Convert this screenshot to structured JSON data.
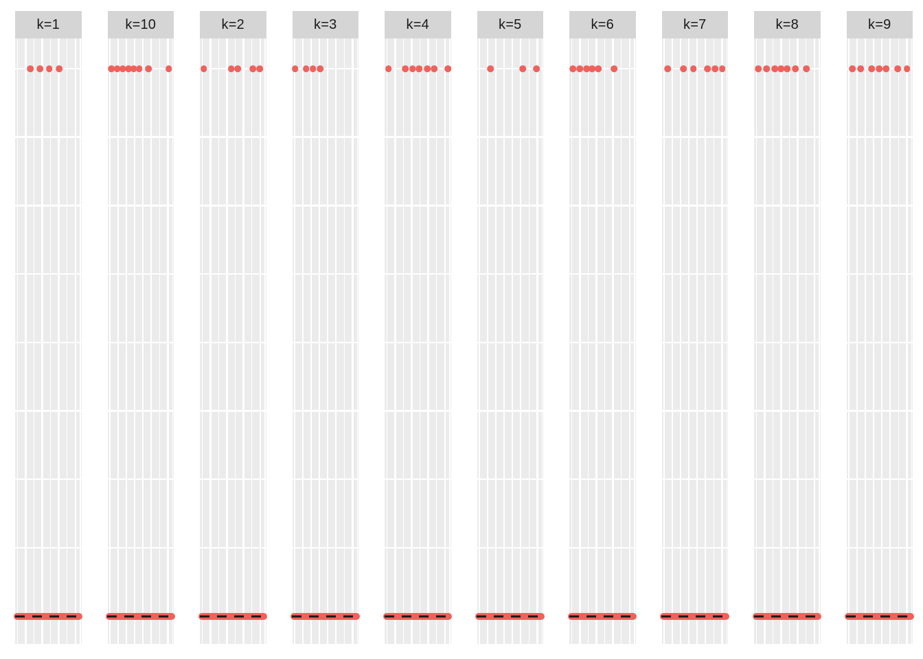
{
  "figure": {
    "description": "ggplot-style faceted strip chart: 10 grey panels in one row, each with a grey strip header, white gridlines, a row of red points near the top and a red horizontal band with a black dashed mean line near the bottom",
    "colors": {
      "page_bg": "#ffffff",
      "panel_bg": "#ebebeb",
      "strip_bg": "#d5d5d5",
      "gridline": "#ffffff",
      "point_red": "#f0615b",
      "band_red": "#f0615b",
      "dashed_line": "#161616",
      "strip_text": "#1a1a1a"
    }
  },
  "chart_data": {
    "type": "scatter",
    "facet_variable": "k",
    "facet_order": [
      "k=1",
      "k=10",
      "k=2",
      "k=3",
      "k=4",
      "k=5",
      "k=6",
      "k=7",
      "k=8",
      "k=9"
    ],
    "axes": {
      "x_tick_labels_visible": false,
      "y_tick_labels_visible": false,
      "note": "no axis text or titles visible; white major/minor vertical gridlines and horizontal gridlines on grey panels"
    },
    "top_row_y_frac": 0.05,
    "bottom_band_y_frac": 0.955,
    "facets": [
      {
        "label": "k=1",
        "dots_x_pct": [
          23.1,
          37.6,
          51.5,
          66.3
        ],
        "band": true,
        "dashed_mean_line": true
      },
      {
        "label": "k=10",
        "dots_x_pct": [
          5.9,
          14.6,
          23.2,
          31.8,
          39.5,
          47.8,
          61.6,
          92.3
        ],
        "band": true,
        "dashed_mean_line": true
      },
      {
        "label": "k=2",
        "dots_x_pct": [
          5.7,
          47.2,
          57.5,
          79.9,
          90.3
        ],
        "band": true,
        "dashed_mean_line": true
      },
      {
        "label": "k=3",
        "dots_x_pct": [
          4.4,
          20.9,
          31.3,
          42.4
        ],
        "band": true,
        "dashed_mean_line": true
      },
      {
        "label": "k=4",
        "dots_x_pct": [
          5.7,
          31.6,
          42.0,
          52.3,
          64.5,
          74.8,
          95.5
        ],
        "band": true,
        "dashed_mean_line": true
      },
      {
        "label": "k=5",
        "dots_x_pct": [
          20.7,
          69.1,
          89.8
        ],
        "band": true,
        "dashed_mean_line": true
      },
      {
        "label": "k=6",
        "dots_x_pct": [
          5.6,
          16.0,
          26.3,
          34.6,
          43.9,
          67.8
        ],
        "band": true,
        "dashed_mean_line": true
      },
      {
        "label": "k=7",
        "dots_x_pct": [
          9.0,
          32.8,
          47.7,
          69.1,
          80.8,
          91.2
        ],
        "band": true,
        "dashed_mean_line": true
      },
      {
        "label": "k=8",
        "dots_x_pct": [
          6.4,
          18.9,
          31.3,
          40.6,
          50.0,
          62.4,
          79.0
        ],
        "band": true,
        "dashed_mean_line": true
      },
      {
        "label": "k=9",
        "dots_x_pct": [
          9.3,
          21.2,
          38.3,
          49.2,
          60.1,
          77.2,
          91.2
        ],
        "band": true,
        "dashed_mean_line": true
      }
    ]
  }
}
